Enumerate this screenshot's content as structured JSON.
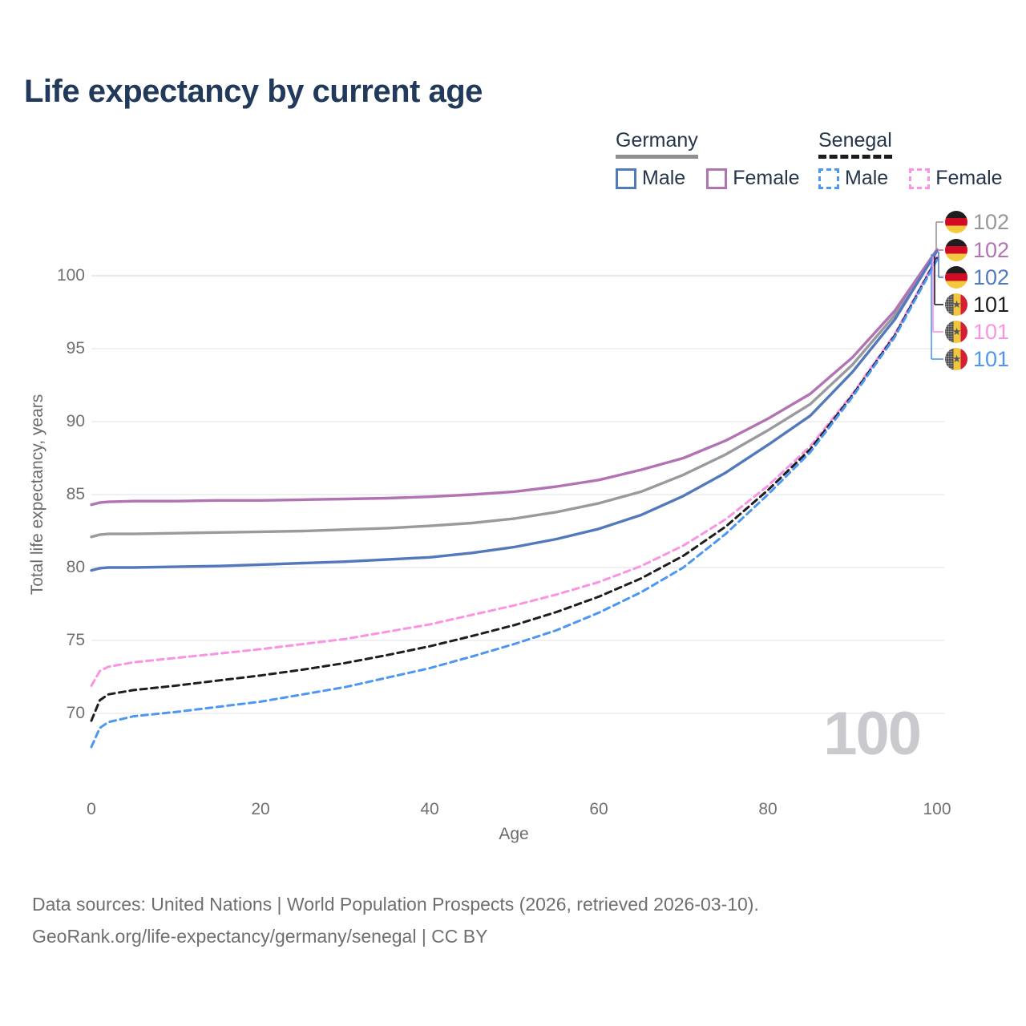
{
  "title": "Life expectancy by current age",
  "legend": {
    "groups": [
      {
        "label": "Germany",
        "underline_color": "#8f8f8f",
        "underline_style": "solid",
        "items": [
          {
            "label": "Male",
            "color": "#5379bd",
            "dashed": false
          },
          {
            "label": "Female",
            "color": "#b273b3",
            "dashed": false
          }
        ]
      },
      {
        "label": "Senegal",
        "underline_color": "#1c1c1c",
        "underline_style": "dashed",
        "items": [
          {
            "label": "Male",
            "color": "#4d96f2",
            "dashed": true
          },
          {
            "label": "Female",
            "color": "#fb93e3",
            "dashed": true
          }
        ]
      }
    ]
  },
  "chart_data": {
    "type": "line",
    "title": "Life expectancy by current age",
    "xlabel": "Age",
    "ylabel": "Total life expectancy, years",
    "x_ticks": [
      0,
      20,
      40,
      60,
      80,
      100
    ],
    "y_ticks": [
      70,
      75,
      80,
      85,
      90,
      95,
      100
    ],
    "xlim": [
      0,
      100
    ],
    "ylim": [
      67,
      103
    ],
    "grid": true,
    "legend_position": "top-right",
    "x": [
      0,
      1,
      2,
      5,
      10,
      15,
      20,
      25,
      30,
      35,
      40,
      45,
      50,
      55,
      60,
      65,
      70,
      75,
      80,
      85,
      90,
      95,
      100
    ],
    "series": [
      {
        "name": "Germany Both sexes",
        "color": "#9a9a9e",
        "line": "solid",
        "values": [
          82.1,
          82.25,
          82.3,
          82.3,
          82.35,
          82.4,
          82.45,
          82.5,
          82.6,
          82.7,
          82.85,
          83.05,
          83.35,
          83.8,
          84.4,
          85.2,
          86.35,
          87.75,
          89.4,
          91.2,
          93.9,
          97.3,
          101.75
        ]
      },
      {
        "name": "Germany Female",
        "color": "#b273b3",
        "line": "solid",
        "values": [
          84.3,
          84.45,
          84.5,
          84.55,
          84.55,
          84.6,
          84.6,
          84.65,
          84.7,
          84.75,
          84.85,
          85.0,
          85.2,
          85.55,
          86.0,
          86.7,
          87.5,
          88.7,
          90.2,
          91.9,
          94.4,
          97.6,
          101.8
        ]
      },
      {
        "name": "Germany Male",
        "color": "#5379bd",
        "line": "solid",
        "values": [
          79.8,
          79.95,
          80.0,
          80.0,
          80.05,
          80.1,
          80.2,
          80.3,
          80.4,
          80.55,
          80.7,
          81.0,
          81.4,
          81.95,
          82.65,
          83.6,
          84.9,
          86.5,
          88.4,
          90.4,
          93.4,
          97.0,
          101.7
        ]
      },
      {
        "name": "Senegal Female",
        "color": "#fb93e3",
        "line": "dashed",
        "values": [
          71.9,
          72.9,
          73.2,
          73.5,
          73.8,
          74.1,
          74.4,
          74.75,
          75.1,
          75.6,
          76.1,
          76.75,
          77.4,
          78.15,
          79.0,
          80.1,
          81.5,
          83.3,
          85.6,
          88.3,
          91.9,
          96.0,
          101.3
        ]
      },
      {
        "name": "Senegal Both sexes",
        "color": "#1e1e1e",
        "line": "dashed",
        "values": [
          69.5,
          70.9,
          71.3,
          71.6,
          71.9,
          72.25,
          72.6,
          73.0,
          73.45,
          74.0,
          74.6,
          75.3,
          76.05,
          76.95,
          78.0,
          79.25,
          80.8,
          82.8,
          85.3,
          88.1,
          91.8,
          95.9,
          101.2
        ]
      },
      {
        "name": "Senegal Male",
        "color": "#4d96f2",
        "line": "dashed",
        "values": [
          67.7,
          69.0,
          69.4,
          69.8,
          70.1,
          70.45,
          70.8,
          71.3,
          71.8,
          72.45,
          73.1,
          73.9,
          74.75,
          75.7,
          76.9,
          78.3,
          80.0,
          82.3,
          85.0,
          87.9,
          91.7,
          95.8,
          101.1
        ]
      }
    ]
  },
  "endpoints": [
    {
      "flag": "germany",
      "value": "102",
      "color": "#97979b"
    },
    {
      "flag": "germany",
      "value": "102",
      "color": "#b273b3"
    },
    {
      "flag": "germany",
      "value": "102",
      "color": "#5379bd"
    },
    {
      "flag": "senegal",
      "value": "101",
      "color": "#1b1b1b"
    },
    {
      "flag": "senegal",
      "value": "101",
      "color": "#fb93e3"
    },
    {
      "flag": "senegal",
      "value": "101",
      "color": "#4d96f2"
    }
  ],
  "flags": {
    "germany_bands": [
      "#1e1e1e",
      "#d00b23",
      "#f3c93f"
    ],
    "senegal_bands": [
      "#4a4a4e",
      "#f0c53f",
      "#d42032"
    ],
    "senegal_star": "#55565a",
    "star_glyph": "★"
  },
  "watermark": "100",
  "colors": {
    "grid": "#e7e7ea",
    "grid_top": "#dcdce0",
    "tick_text": "#707070"
  },
  "footer": {
    "line1": "Data sources: United Nations | World Population Prospects (2026, retrieved 2026-03-10).",
    "line2": "GeoRank.org/life-expectancy/germany/senegal | CC BY"
  }
}
